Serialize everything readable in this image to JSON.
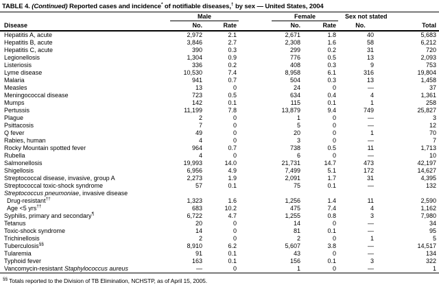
{
  "title": {
    "prefix": "TABLE 4. ",
    "continued": "(Continued)",
    "segment_1": " Reported cases and incidence",
    "sup_star": "*",
    "segment_2": " of notifiable diseases,",
    "sup_dagger": "†",
    "segment_3": " by sex — United States, 2004"
  },
  "table": {
    "group_headers": {
      "male": "Male",
      "female": "Female",
      "sex_not_stated": "Sex not stated"
    },
    "sub_headers": {
      "disease": "Disease",
      "no": "No.",
      "rate": "Rate",
      "total": "Total"
    },
    "rows": [
      {
        "pre": "Hepatitis A, acute",
        "italic": "",
        "post": "",
        "sup": "",
        "indent": false,
        "values": [
          "2,972",
          "2.1",
          "2,671",
          "1.8",
          "40",
          "5,683"
        ]
      },
      {
        "pre": "Hepatitis B, acute",
        "italic": "",
        "post": "",
        "sup": "",
        "indent": false,
        "values": [
          "3,846",
          "2.7",
          "2,308",
          "1.6",
          "58",
          "6,212"
        ]
      },
      {
        "pre": "Hepatitis C, acute",
        "italic": "",
        "post": "",
        "sup": "",
        "indent": false,
        "values": [
          "390",
          "0.3",
          "299",
          "0.2",
          "31",
          "720"
        ]
      },
      {
        "pre": "Legionellosis",
        "italic": "",
        "post": "",
        "sup": "",
        "indent": false,
        "values": [
          "1,304",
          "0.9",
          "776",
          "0.5",
          "13",
          "2,093"
        ]
      },
      {
        "pre": "Listeriosis",
        "italic": "",
        "post": "",
        "sup": "",
        "indent": false,
        "values": [
          "336",
          "0.2",
          "408",
          "0.3",
          "9",
          "753"
        ]
      },
      {
        "pre": "Lyme disease",
        "italic": "",
        "post": "",
        "sup": "",
        "indent": false,
        "values": [
          "10,530",
          "7.4",
          "8,958",
          "6.1",
          "316",
          "19,804"
        ]
      },
      {
        "pre": "Malaria",
        "italic": "",
        "post": "",
        "sup": "",
        "indent": false,
        "values": [
          "941",
          "0.7",
          "504",
          "0.3",
          "13",
          "1,458"
        ]
      },
      {
        "pre": "Measles",
        "italic": "",
        "post": "",
        "sup": "",
        "indent": false,
        "values": [
          "13",
          "0",
          "24",
          "0",
          "—",
          "37"
        ]
      },
      {
        "pre": "Meningococcal disease",
        "italic": "",
        "post": "",
        "sup": "",
        "indent": false,
        "values": [
          "723",
          "0.5",
          "634",
          "0.4",
          "4",
          "1,361"
        ]
      },
      {
        "pre": "Mumps",
        "italic": "",
        "post": "",
        "sup": "",
        "indent": false,
        "values": [
          "142",
          "0.1",
          "115",
          "0.1",
          "1",
          "258"
        ]
      },
      {
        "pre": "Pertussis",
        "italic": "",
        "post": "",
        "sup": "",
        "indent": false,
        "values": [
          "11,199",
          "7.8",
          "13,879",
          "9.4",
          "749",
          "25,827"
        ]
      },
      {
        "pre": "Plague",
        "italic": "",
        "post": "",
        "sup": "",
        "indent": false,
        "values": [
          "2",
          "0",
          "1",
          "0",
          "—",
          "3"
        ]
      },
      {
        "pre": "Psittacosis",
        "italic": "",
        "post": "",
        "sup": "",
        "indent": false,
        "values": [
          "7",
          "0",
          "5",
          "0",
          "—",
          "12"
        ]
      },
      {
        "pre": "Q fever",
        "italic": "",
        "post": "",
        "sup": "",
        "indent": false,
        "values": [
          "49",
          "0",
          "20",
          "0",
          "1",
          "70"
        ]
      },
      {
        "pre": "Rabies, human",
        "italic": "",
        "post": "",
        "sup": "",
        "indent": false,
        "values": [
          "4",
          "0",
          "3",
          "0",
          "—",
          "7"
        ]
      },
      {
        "pre": "Rocky Mountain spotted fever",
        "italic": "",
        "post": "",
        "sup": "",
        "indent": false,
        "values": [
          "964",
          "0.7",
          "738",
          "0.5",
          "11",
          "1,713"
        ]
      },
      {
        "pre": "Rubella",
        "italic": "",
        "post": "",
        "sup": "",
        "indent": false,
        "values": [
          "4",
          "0",
          "6",
          "0",
          "—",
          "10"
        ]
      },
      {
        "pre": "Salmonellosis",
        "italic": "",
        "post": "",
        "sup": "",
        "indent": false,
        "values": [
          "19,993",
          "14.0",
          "21,731",
          "14.7",
          "473",
          "42,197"
        ]
      },
      {
        "pre": "Shigellosis",
        "italic": "",
        "post": "",
        "sup": "",
        "indent": false,
        "values": [
          "6,956",
          "4.9",
          "7,499",
          "5.1",
          "172",
          "14,627"
        ]
      },
      {
        "pre": "Streptococcal disease, invasive, group A",
        "italic": "",
        "post": "",
        "sup": "",
        "indent": false,
        "values": [
          "2,273",
          "1.9",
          "2,091",
          "1.7",
          "31",
          "4,395"
        ]
      },
      {
        "pre": "Streptococcal toxic-shock syndrome",
        "italic": "",
        "post": "",
        "sup": "",
        "indent": false,
        "values": [
          "57",
          "0.1",
          "75",
          "0.1",
          "—",
          "132"
        ]
      },
      {
        "pre": "",
        "italic": "Streptococcus pneumoniae",
        "post": ", invasive disease",
        "sup": "",
        "indent": false,
        "values": [
          "",
          "",
          "",
          "",
          "",
          ""
        ]
      },
      {
        "pre": "Drug-resistant",
        "italic": "",
        "post": "",
        "sup": "††",
        "indent": true,
        "values": [
          "1,323",
          "1.6",
          "1,256",
          "1.4",
          "11",
          "2,590"
        ]
      },
      {
        "pre": "Age <5 yrs",
        "italic": "",
        "post": "",
        "sup": "††",
        "indent": true,
        "values": [
          "683",
          "10.2",
          "475",
          "7.4",
          "4",
          "1,162"
        ]
      },
      {
        "pre": "Syphilis, primary and secondary",
        "italic": "",
        "post": "",
        "sup": "¶",
        "indent": false,
        "values": [
          "6,722",
          "4.7",
          "1,255",
          "0.8",
          "3",
          "7,980"
        ]
      },
      {
        "pre": "Tetanus",
        "italic": "",
        "post": "",
        "sup": "",
        "indent": false,
        "values": [
          "20",
          "0",
          "14",
          "0",
          "—",
          "34"
        ]
      },
      {
        "pre": "Toxic-shock syndrome",
        "italic": "",
        "post": "",
        "sup": "",
        "indent": false,
        "values": [
          "14",
          "0",
          "81",
          "0.1",
          "—",
          "95"
        ]
      },
      {
        "pre": "Trichinellosis",
        "italic": "",
        "post": "",
        "sup": "",
        "indent": false,
        "values": [
          "2",
          "0",
          "2",
          "0",
          "1",
          "5"
        ]
      },
      {
        "pre": "Tuberculosis",
        "italic": "",
        "post": "",
        "sup": "§§",
        "indent": false,
        "values": [
          "8,910",
          "6.2",
          "5,607",
          "3.8",
          "—",
          "14,517"
        ]
      },
      {
        "pre": "Tularemia",
        "italic": "",
        "post": "",
        "sup": "",
        "indent": false,
        "values": [
          "91",
          "0.1",
          "43",
          "0",
          "—",
          "134"
        ]
      },
      {
        "pre": "Typhoid fever",
        "italic": "",
        "post": "",
        "sup": "",
        "indent": false,
        "values": [
          "163",
          "0.1",
          "156",
          "0.1",
          "3",
          "322"
        ]
      },
      {
        "pre": "Vancomycin-resistant ",
        "italic": "Staphylococcus aureus",
        "post": "",
        "sup": "",
        "indent": false,
        "values": [
          "—",
          "0",
          "1",
          "0",
          "—",
          "1"
        ]
      }
    ]
  },
  "footnote": {
    "sup": "§§",
    "text": " Totals reported to the Division of TB Elimination, NCHSTP, as of April 15, 2005."
  }
}
